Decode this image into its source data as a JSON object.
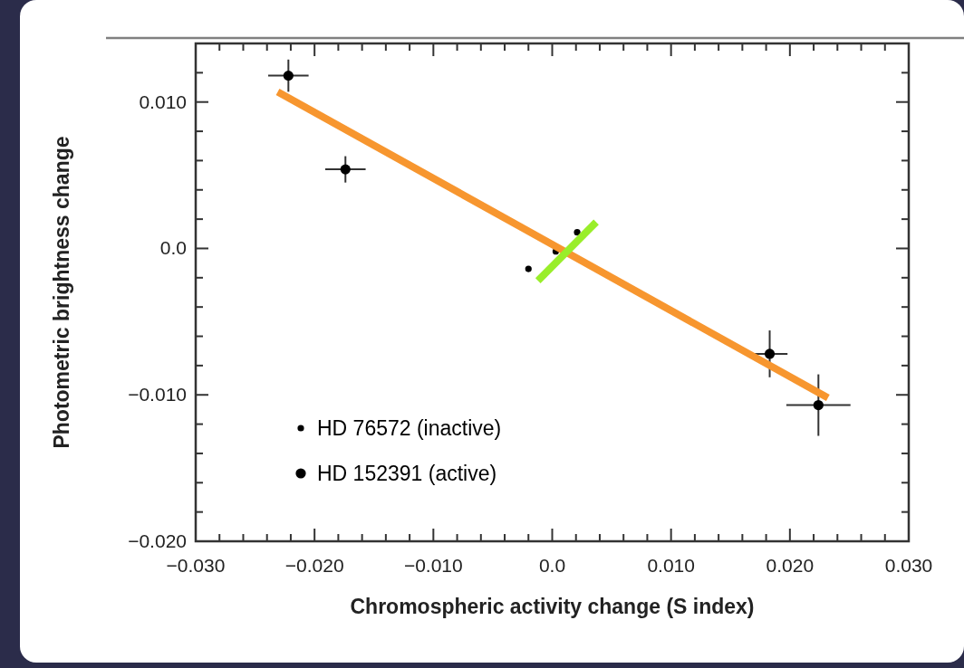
{
  "chart_data": {
    "type": "scatter",
    "xlabel": "Chromospheric activity change (S index)",
    "ylabel": "Photometric brightness change",
    "xlim": [
      -0.03,
      0.03
    ],
    "xticks": [
      {
        "value": -0.03,
        "label": "−0.030"
      },
      {
        "value": -0.028,
        "label": null
      },
      {
        "value": -0.026,
        "label": null
      },
      {
        "value": -0.024,
        "label": null
      },
      {
        "value": -0.022,
        "label": null
      },
      {
        "value": -0.02,
        "label": "−0.020"
      },
      {
        "value": -0.018,
        "label": null
      },
      {
        "value": -0.016,
        "label": null
      },
      {
        "value": -0.014,
        "label": null
      },
      {
        "value": -0.012,
        "label": null
      },
      {
        "value": -0.01,
        "label": "−0.010"
      },
      {
        "value": -0.008,
        "label": null
      },
      {
        "value": -0.006,
        "label": null
      },
      {
        "value": -0.004,
        "label": null
      },
      {
        "value": -0.002,
        "label": null
      },
      {
        "value": 0,
        "label": "0.0"
      },
      {
        "value": 0.002,
        "label": null
      },
      {
        "value": 0.004,
        "label": null
      },
      {
        "value": 0.006,
        "label": null
      },
      {
        "value": 0.008,
        "label": null
      },
      {
        "value": 0.01,
        "label": "0.010"
      },
      {
        "value": 0.012,
        "label": null
      },
      {
        "value": 0.014,
        "label": null
      },
      {
        "value": 0.016,
        "label": null
      },
      {
        "value": 0.018,
        "label": null
      },
      {
        "value": 0.02,
        "label": "0.020"
      },
      {
        "value": 0.022,
        "label": null
      },
      {
        "value": 0.024,
        "label": null
      },
      {
        "value": 0.026,
        "label": null
      },
      {
        "value": 0.028,
        "label": null
      },
      {
        "value": 0.03,
        "label": "0.030"
      }
    ],
    "ylim": [
      -0.02,
      0.014
    ],
    "yticks": [
      {
        "value": -0.02,
        "label": "−0.020"
      },
      {
        "value": -0.018,
        "label": null
      },
      {
        "value": -0.016,
        "label": null
      },
      {
        "value": -0.014,
        "label": null
      },
      {
        "value": -0.012,
        "label": null
      },
      {
        "value": -0.01,
        "label": "−0.010"
      },
      {
        "value": -0.008,
        "label": null
      },
      {
        "value": -0.006,
        "label": null
      },
      {
        "value": -0.004,
        "label": null
      },
      {
        "value": -0.002,
        "label": null
      },
      {
        "value": 0,
        "label": "0.0"
      },
      {
        "value": 0.002,
        "label": null
      },
      {
        "value": 0.004,
        "label": null
      },
      {
        "value": 0.006,
        "label": null
      },
      {
        "value": 0.008,
        "label": null
      },
      {
        "value": 0.01,
        "label": "0.010"
      },
      {
        "value": 0.012,
        "label": null
      }
    ],
    "grid": false,
    "legend": "bottom left",
    "marker": "circle",
    "series": [
      {
        "name": "HD 76572 (inactive)",
        "color": "#000000",
        "x": [
          -0.002,
          0.0003,
          0.0021
        ],
        "values": [
          -0.0014,
          -0.0002,
          0.0011
        ]
      },
      {
        "name": "HD 152391 (active)",
        "color": "#000000",
        "x": [
          -0.0222,
          -0.0174,
          0.0183,
          0.0224
        ],
        "values": [
          0.0118,
          0.0054,
          -0.0072,
          -0.0107
        ],
        "errors": [
          0.0011,
          0.0009,
          0.0016,
          0.0021
        ],
        "xerrors": [
          0.0017,
          0.0017,
          0.0015,
          0.0027
        ]
      },
      {
        "type": "line",
        "marker": "none",
        "color": "#f7962f",
        "x": [
          -0.0231,
          0.0232
        ],
        "values": [
          0.0107,
          -0.0102
        ]
      },
      {
        "type": "line",
        "marker": "none",
        "color": "#99ee2a",
        "x": [
          -0.0012,
          0.0037
        ],
        "values": [
          -0.0022,
          0.0018
        ]
      }
    ]
  }
}
